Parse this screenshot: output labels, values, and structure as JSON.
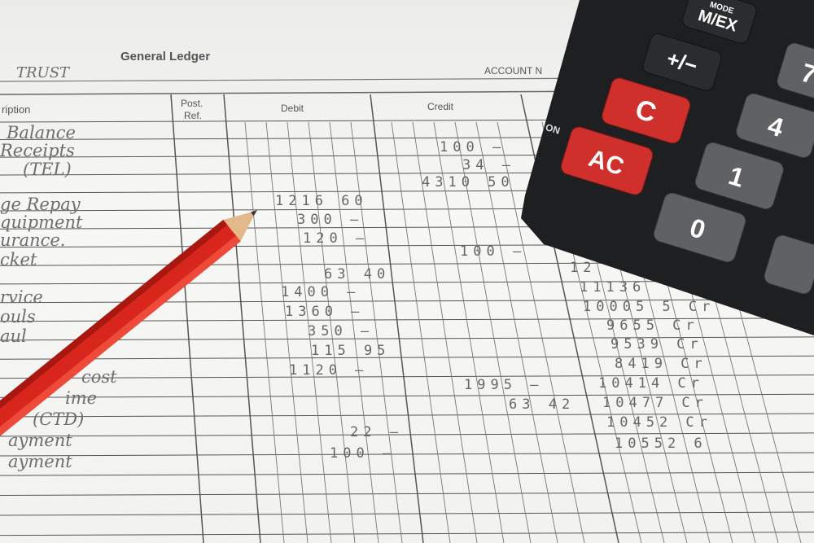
{
  "ledger": {
    "title": "General Ledger",
    "account_name": "TRUST",
    "account_no_label": "ACCOUNT N",
    "headers": {
      "description": "ription",
      "post_ref_1": "Post.",
      "post_ref_2": "Ref.",
      "debit": "Debit",
      "credit": "Credit"
    },
    "descriptions": [
      "Balance",
      "Receipts",
      "(TEL)",
      "ge Repay",
      "quipment",
      "urance.",
      "cket",
      "rvice",
      "ouls",
      "aul",
      "cost",
      "ime",
      "(CTD)",
      "ayment",
      "ayment"
    ],
    "debits": [
      "1216 60",
      "300 —",
      "120 —",
      "63 40",
      "1400 —",
      "1360 —",
      "350 —",
      "115 95",
      "1120 —",
      "22 —",
      "100 —"
    ],
    "credits": [
      "100 —",
      "34 —",
      "4310 50",
      "100 —",
      "1995 —",
      "63 42"
    ],
    "balances": [
      "12",
      "11136",
      "10005 5 Cr",
      "9655 Cr",
      "9539 Cr",
      "8419 Cr",
      "10414 Cr",
      "10477 Cr",
      "10452 Cr",
      "10552 6"
    ]
  },
  "calculator": {
    "keys": {
      "mode_top": "MODE",
      "mode": "M/EX",
      "sign": "+/−",
      "clear": "C",
      "all_clear": "AC",
      "on_label": "ON",
      "seven": "7",
      "four": "4",
      "one": "1",
      "zero": "0"
    },
    "colors": {
      "body": "#1e1f21",
      "red_key": "#d0302c",
      "gray_key": "#5f6163"
    }
  },
  "pencil": {
    "color": "#d8261c"
  }
}
